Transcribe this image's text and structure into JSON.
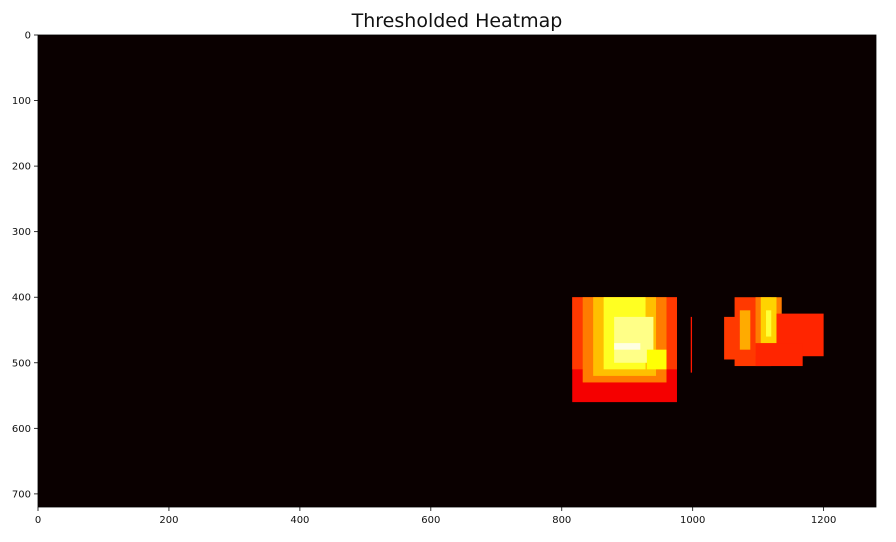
{
  "chart_data": {
    "type": "heatmap",
    "title": "Thresholded Heatmap",
    "xlabel": "",
    "ylabel": "",
    "xlim": [
      0,
      1280
    ],
    "ylim": [
      720,
      0
    ],
    "grid": false,
    "colormap": "hot",
    "background_color": "#0a0000",
    "x_ticks": [
      0,
      200,
      400,
      600,
      800,
      1000,
      1200
    ],
    "y_ticks": [
      0,
      100,
      200,
      300,
      400,
      500,
      600,
      700
    ],
    "regions": [
      {
        "x": [
          816,
          976
        ],
        "y": [
          400,
          560
        ],
        "value": 0.35
      },
      {
        "x": [
          816,
          976
        ],
        "y": [
          400,
          510
        ],
        "value": 0.45
      },
      {
        "x": [
          832,
          960
        ],
        "y": [
          400,
          530
        ],
        "value": 0.55
      },
      {
        "x": [
          848,
          944
        ],
        "y": [
          400,
          520
        ],
        "value": 0.65
      },
      {
        "x": [
          864,
          928
        ],
        "y": [
          400,
          510
        ],
        "value": 0.78
      },
      {
        "x": [
          880,
          940
        ],
        "y": [
          430,
          500
        ],
        "value": 0.88
      },
      {
        "x": [
          880,
          920
        ],
        "y": [
          470,
          480
        ],
        "value": 0.97
      },
      {
        "x": [
          930,
          960
        ],
        "y": [
          480,
          510
        ],
        "value": 0.75
      },
      {
        "x": [
          997,
          999
        ],
        "y": [
          430,
          515
        ],
        "value": 0.4
      },
      {
        "x": [
          1048,
          1072
        ],
        "y": [
          430,
          495
        ],
        "value": 0.45
      },
      {
        "x": [
          1064,
          1120
        ],
        "y": [
          400,
          505
        ],
        "value": 0.45
      },
      {
        "x": [
          1072,
          1088
        ],
        "y": [
          420,
          480
        ],
        "value": 0.62
      },
      {
        "x": [
          1096,
          1136
        ],
        "y": [
          400,
          490
        ],
        "value": 0.55
      },
      {
        "x": [
          1104,
          1128
        ],
        "y": [
          400,
          470
        ],
        "value": 0.68
      },
      {
        "x": [
          1112,
          1120
        ],
        "y": [
          420,
          460
        ],
        "value": 0.8
      },
      {
        "x": [
          1128,
          1200
        ],
        "y": [
          425,
          490
        ],
        "value": 0.42
      },
      {
        "x": [
          1096,
          1168
        ],
        "y": [
          470,
          505
        ],
        "value": 0.42
      }
    ]
  }
}
